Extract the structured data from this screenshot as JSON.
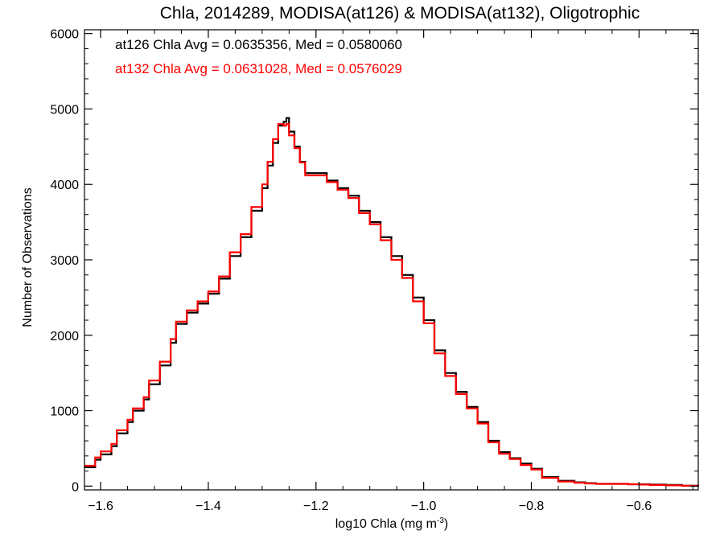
{
  "chart_data": {
    "type": "line",
    "title": "Chla, 2014289, MODISA(at126) & MODISA(at132), Oligotrophic",
    "xlabel": "log10 Chla (mg m",
    "xlabel_sup": "-3",
    "xlabel_suffix": ")",
    "ylabel": "Number of Observations",
    "xlim": [
      -1.63,
      -0.49
    ],
    "ylim": [
      -50,
      6050
    ],
    "xticks": [
      -1.6,
      -1.4,
      -1.2,
      -1.0,
      -0.8,
      -0.6
    ],
    "xtick_labels": [
      "−1.6",
      "−1.4",
      "−1.2",
      "−1.0",
      "−0.8",
      "−0.6"
    ],
    "yticks": [
      0,
      1000,
      2000,
      3000,
      4000,
      5000,
      6000
    ],
    "ytick_labels": [
      "0",
      "1000",
      "2000",
      "3000",
      "4000",
      "5000",
      "6000"
    ],
    "grid": false,
    "legend": "top-left",
    "annotations": [
      "at126 Chla Avg = 0.0635356, Med = 0.0580060",
      "at132 Chla Avg = 0.0631028, Med = 0.0576029"
    ],
    "colors": {
      "at126": "#000000",
      "at132": "#ff0000"
    },
    "series": [
      {
        "key": "at126",
        "x": [
          -1.63,
          -1.61,
          -1.6,
          -1.58,
          -1.57,
          -1.55,
          -1.54,
          -1.52,
          -1.51,
          -1.49,
          -1.47,
          -1.46,
          -1.44,
          -1.42,
          -1.4,
          -1.38,
          -1.36,
          -1.34,
          -1.32,
          -1.3,
          -1.29,
          -1.28,
          -1.27,
          -1.26,
          -1.255,
          -1.25,
          -1.24,
          -1.23,
          -1.22,
          -1.2,
          -1.18,
          -1.16,
          -1.14,
          -1.12,
          -1.1,
          -1.08,
          -1.06,
          -1.04,
          -1.02,
          -1.0,
          -0.98,
          -0.96,
          -0.94,
          -0.92,
          -0.9,
          -0.88,
          -0.86,
          -0.84,
          -0.82,
          -0.8,
          -0.78,
          -0.75,
          -0.72,
          -0.7,
          -0.68,
          -0.65,
          -0.62,
          -0.6,
          -0.58,
          -0.55,
          -0.52,
          -0.49
        ],
        "y": [
          250,
          350,
          420,
          530,
          700,
          850,
          1000,
          1150,
          1350,
          1600,
          1900,
          2150,
          2300,
          2420,
          2550,
          2750,
          3050,
          3300,
          3650,
          3950,
          4250,
          4550,
          4780,
          4830,
          4880,
          4700,
          4500,
          4300,
          4150,
          4150,
          4050,
          3950,
          3850,
          3650,
          3500,
          3300,
          3050,
          2800,
          2500,
          2200,
          1800,
          1500,
          1250,
          1050,
          850,
          600,
          450,
          370,
          300,
          230,
          120,
          70,
          50,
          40,
          30,
          30,
          25,
          25,
          20,
          15,
          5,
          0
        ]
      },
      {
        "key": "at132",
        "x": [
          -1.63,
          -1.61,
          -1.6,
          -1.58,
          -1.57,
          -1.55,
          -1.54,
          -1.52,
          -1.51,
          -1.49,
          -1.47,
          -1.46,
          -1.44,
          -1.42,
          -1.4,
          -1.38,
          -1.36,
          -1.34,
          -1.32,
          -1.3,
          -1.29,
          -1.28,
          -1.27,
          -1.26,
          -1.255,
          -1.25,
          -1.24,
          -1.23,
          -1.22,
          -1.2,
          -1.18,
          -1.16,
          -1.14,
          -1.12,
          -1.1,
          -1.08,
          -1.06,
          -1.04,
          -1.02,
          -1.0,
          -0.98,
          -0.96,
          -0.94,
          -0.92,
          -0.9,
          -0.88,
          -0.86,
          -0.84,
          -0.82,
          -0.8,
          -0.78,
          -0.75,
          -0.72,
          -0.7,
          -0.68,
          -0.65,
          -0.62,
          -0.6,
          -0.58,
          -0.55,
          -0.52,
          -0.49
        ],
        "y": [
          270,
          380,
          460,
          560,
          740,
          880,
          1030,
          1180,
          1400,
          1650,
          1950,
          2180,
          2330,
          2450,
          2580,
          2780,
          3100,
          3340,
          3700,
          4000,
          4300,
          4600,
          4800,
          4780,
          4800,
          4650,
          4480,
          4290,
          4120,
          4120,
          4030,
          3930,
          3820,
          3620,
          3470,
          3260,
          3000,
          2760,
          2450,
          2160,
          1760,
          1460,
          1220,
          1030,
          830,
          580,
          430,
          360,
          280,
          220,
          110,
          60,
          45,
          35,
          30,
          30,
          25,
          20,
          15,
          10,
          5,
          0
        ]
      }
    ]
  }
}
